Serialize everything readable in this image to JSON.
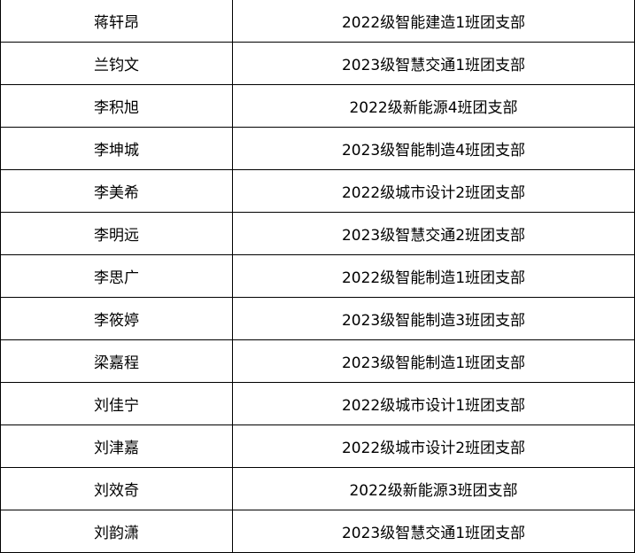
{
  "rows": [
    {
      "name": "蒋轩昂",
      "branch": "2022级智能建造1班团支部"
    },
    {
      "name": "兰钧文",
      "branch": "2023级智慧交通1班团支部"
    },
    {
      "name": "李积旭",
      "branch": "2022级新能源4班团支部"
    },
    {
      "name": "李坤城",
      "branch": "2023级智能制造4班团支部"
    },
    {
      "name": "李美希",
      "branch": "2022级城市设计2班团支部"
    },
    {
      "name": "李明远",
      "branch": "2023级智慧交通2班团支部"
    },
    {
      "name": "李思广",
      "branch": "2022级智能制造1班团支部"
    },
    {
      "name": "李筱婷",
      "branch": "2023级智能制造3班团支部"
    },
    {
      "name": "梁嘉程",
      "branch": "2023级智能制造1班团支部"
    },
    {
      "name": "刘佳宁",
      "branch": "2022级城市设计1班团支部"
    },
    {
      "name": "刘津嘉",
      "branch": "2022级城市设计2班团支部"
    },
    {
      "name": "刘效奇",
      "branch": "2022级新能源3班团支部"
    },
    {
      "name": "刘韵潇",
      "branch": "2023级智慧交通1班团支部"
    }
  ]
}
